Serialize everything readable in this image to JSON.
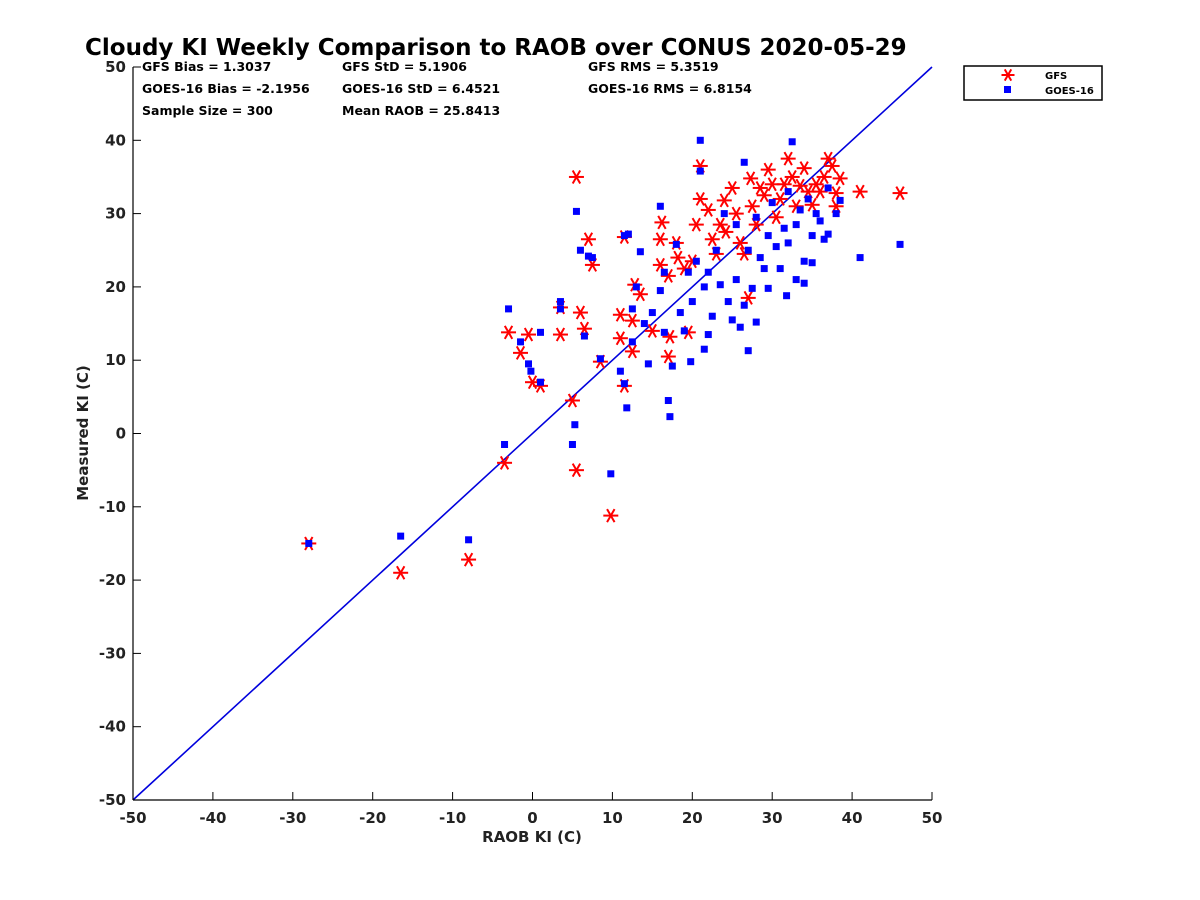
{
  "chart_data": {
    "type": "scatter",
    "title": "Cloudy KI Weekly Comparison to RAOB over CONUS 2020-05-29",
    "xlabel": "RAOB KI (C)",
    "ylabel": "Measured KI (C)",
    "xlim": [
      -50,
      50
    ],
    "ylim": [
      -50,
      50
    ],
    "xticks": [
      "-50",
      "-40",
      "-30",
      "-20",
      "-10",
      "0",
      "10",
      "20",
      "30",
      "40",
      "50"
    ],
    "yticks": [
      "50",
      "40",
      "30",
      "20",
      "10",
      "0",
      "-10",
      "-20",
      "-30",
      "-40",
      "-50"
    ],
    "grid": false,
    "legend_position": "outside top-right",
    "reference_line": "1:1",
    "stats": {
      "gfs_bias": "GFS Bias = 1.3037",
      "goes_bias": "GOES-16 Bias = -2.1956",
      "sample_size": "Sample Size = 300",
      "gfs_std": "GFS StD = 5.1906",
      "goes_std": "GOES-16 StD = 6.4521",
      "mean_raob": "Mean RAOB = 25.8413",
      "gfs_rms": "GFS RMS = 5.3519",
      "goes_rms": "GOES-16 RMS = 6.8154"
    },
    "series": [
      {
        "name": "GFS",
        "color": "#ff0000",
        "marker": "asterisk",
        "points": [
          [
            -28,
            -15
          ],
          [
            -16.5,
            -19
          ],
          [
            -8,
            -17.2
          ],
          [
            -3.5,
            -4
          ],
          [
            -3,
            13.8
          ],
          [
            -1.5,
            11
          ],
          [
            -0.5,
            13.5
          ],
          [
            0,
            7
          ],
          [
            1,
            6.5
          ],
          [
            3.5,
            13.5
          ],
          [
            3.5,
            17.2
          ],
          [
            5,
            4.5
          ],
          [
            5.5,
            -5
          ],
          [
            5.5,
            35
          ],
          [
            6,
            16.5
          ],
          [
            6.5,
            14.3
          ],
          [
            7,
            26.5
          ],
          [
            7.5,
            23
          ],
          [
            8.5,
            9.8
          ],
          [
            9.8,
            -11.2
          ],
          [
            11,
            16.2
          ],
          [
            11,
            13
          ],
          [
            11.5,
            6.5
          ],
          [
            11.5,
            26.8
          ],
          [
            12.5,
            11.2
          ],
          [
            12.5,
            15.4
          ],
          [
            12.8,
            20.3
          ],
          [
            13.5,
            19
          ],
          [
            15,
            14
          ],
          [
            16,
            23
          ],
          [
            16,
            26.5
          ],
          [
            16.2,
            28.8
          ],
          [
            17,
            21.5
          ],
          [
            17,
            10.5
          ],
          [
            17.2,
            13.2
          ],
          [
            18,
            26
          ],
          [
            18.2,
            24
          ],
          [
            19,
            22.5
          ],
          [
            19.5,
            13.8
          ],
          [
            20,
            23.5
          ],
          [
            20.5,
            28.5
          ],
          [
            21,
            36.5
          ],
          [
            21,
            32
          ],
          [
            22,
            30.5
          ],
          [
            22.5,
            26.5
          ],
          [
            23,
            24.5
          ],
          [
            23.5,
            28.5
          ],
          [
            24,
            31.8
          ],
          [
            24.2,
            27.5
          ],
          [
            25,
            33.5
          ],
          [
            25.5,
            30
          ],
          [
            26,
            26
          ],
          [
            26.5,
            24.5
          ],
          [
            27,
            18.5
          ],
          [
            27.3,
            34.8
          ],
          [
            27.5,
            31
          ],
          [
            28,
            28.5
          ],
          [
            28.5,
            33.5
          ],
          [
            29,
            32.5
          ],
          [
            29.5,
            36
          ],
          [
            30,
            34
          ],
          [
            30.5,
            29.5
          ],
          [
            31,
            32
          ],
          [
            31.5,
            34
          ],
          [
            32,
            37.5
          ],
          [
            32.5,
            35
          ],
          [
            33,
            31
          ],
          [
            33.5,
            33.8
          ],
          [
            34,
            36.2
          ],
          [
            34.5,
            33
          ],
          [
            35,
            31.2
          ],
          [
            35.5,
            34
          ],
          [
            36,
            33
          ],
          [
            36.5,
            35
          ],
          [
            37,
            37.5
          ],
          [
            37.5,
            36.5
          ],
          [
            38,
            32.8
          ],
          [
            38.5,
            34.8
          ],
          [
            38,
            31
          ],
          [
            41,
            33
          ],
          [
            46,
            32.8
          ]
        ]
      },
      {
        "name": "GOES-16",
        "color": "#0000ff",
        "marker": "square",
        "points": [
          [
            -28,
            -15
          ],
          [
            -16.5,
            -14
          ],
          [
            -8,
            -14.5
          ],
          [
            -3.5,
            -1.5
          ],
          [
            -3,
            17
          ],
          [
            -1.5,
            12.5
          ],
          [
            -0.5,
            9.5
          ],
          [
            -0.2,
            8.5
          ],
          [
            1,
            7
          ],
          [
            1,
            13.8
          ],
          [
            3.5,
            18
          ],
          [
            3.5,
            17
          ],
          [
            5,
            -1.5
          ],
          [
            5.3,
            1.2
          ],
          [
            5.5,
            30.3
          ],
          [
            6,
            25
          ],
          [
            6.5,
            13.3
          ],
          [
            7,
            24.2
          ],
          [
            7.5,
            24
          ],
          [
            8.5,
            10.2
          ],
          [
            9.8,
            -5.5
          ],
          [
            11,
            8.5
          ],
          [
            11.5,
            6.8
          ],
          [
            11.5,
            27
          ],
          [
            11.8,
            3.5
          ],
          [
            12,
            27.2
          ],
          [
            12.5,
            12.5
          ],
          [
            12.5,
            17
          ],
          [
            13,
            20
          ],
          [
            13.5,
            24.8
          ],
          [
            14,
            15
          ],
          [
            14.5,
            9.5
          ],
          [
            15,
            16.5
          ],
          [
            16,
            31
          ],
          [
            16,
            19.5
          ],
          [
            16.5,
            22
          ],
          [
            16.5,
            13.8
          ],
          [
            17,
            4.5
          ],
          [
            17.2,
            2.3
          ],
          [
            17.5,
            9.2
          ],
          [
            18,
            25.8
          ],
          [
            18.5,
            16.5
          ],
          [
            19,
            14
          ],
          [
            19.5,
            22
          ],
          [
            19.8,
            9.8
          ],
          [
            20,
            18
          ],
          [
            20.5,
            23.5
          ],
          [
            21,
            40
          ],
          [
            21,
            35.8
          ],
          [
            21.5,
            11.5
          ],
          [
            21.5,
            20
          ],
          [
            22,
            13.5
          ],
          [
            22,
            22
          ],
          [
            22.5,
            16
          ],
          [
            23,
            25
          ],
          [
            23.5,
            20.3
          ],
          [
            24,
            30
          ],
          [
            24.5,
            18
          ],
          [
            25,
            15.5
          ],
          [
            25.5,
            21
          ],
          [
            25.5,
            28.5
          ],
          [
            26,
            14.5
          ],
          [
            26.5,
            17.5
          ],
          [
            26.5,
            37
          ],
          [
            27,
            11.3
          ],
          [
            27,
            25
          ],
          [
            27.5,
            19.8
          ],
          [
            28,
            29.5
          ],
          [
            28.5,
            24
          ],
          [
            28,
            15.2
          ],
          [
            29,
            22.5
          ],
          [
            29.5,
            19.8
          ],
          [
            29.5,
            27
          ],
          [
            30,
            31.5
          ],
          [
            30.5,
            25.5
          ],
          [
            31,
            22.5
          ],
          [
            31.5,
            28
          ],
          [
            31.8,
            18.8
          ],
          [
            32,
            33
          ],
          [
            32,
            26
          ],
          [
            32.5,
            39.8
          ],
          [
            33,
            21
          ],
          [
            33,
            28.5
          ],
          [
            33.5,
            30.5
          ],
          [
            34,
            20.5
          ],
          [
            34,
            23.5
          ],
          [
            34.5,
            32
          ],
          [
            35,
            27
          ],
          [
            35,
            23.3
          ],
          [
            35.5,
            30
          ],
          [
            36,
            29
          ],
          [
            36.5,
            26.5
          ],
          [
            37,
            27.2
          ],
          [
            37,
            33.5
          ],
          [
            38,
            30
          ],
          [
            38.5,
            31.8
          ],
          [
            41,
            24
          ],
          [
            46,
            25.8
          ]
        ]
      }
    ]
  }
}
